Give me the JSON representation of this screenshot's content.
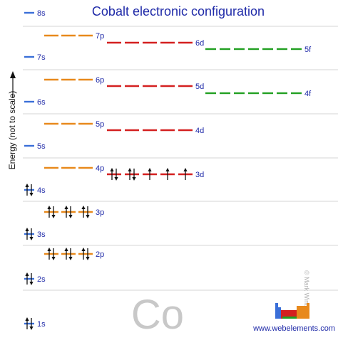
{
  "title": "Cobalt electronic configuration",
  "y_axis_label": "Energy (not to scale)",
  "element_symbol": "Co",
  "credit": "© Mark Winter",
  "website": "www.webelements.com",
  "colors": {
    "s": "#3a6fd8",
    "p": "#e8891c",
    "d": "#d42020",
    "f": "#22a022",
    "label": "#1f2aa8",
    "arrow": "#111111",
    "divider": "#d6d6d6"
  },
  "orbitals": [
    {
      "label": "1s",
      "type": "s",
      "electrons": 2
    },
    {
      "label": "2s",
      "type": "s",
      "electrons": 2
    },
    {
      "label": "2p",
      "type": "p",
      "electrons": 6
    },
    {
      "label": "3s",
      "type": "s",
      "electrons": 2
    },
    {
      "label": "3p",
      "type": "p",
      "electrons": 6
    },
    {
      "label": "4s",
      "type": "s",
      "electrons": 2
    },
    {
      "label": "3d",
      "type": "d",
      "electrons": 7
    },
    {
      "label": "4p",
      "type": "p",
      "electrons": 0
    },
    {
      "label": "5s",
      "type": "s",
      "electrons": 0
    },
    {
      "label": "4d",
      "type": "d",
      "electrons": 0
    },
    {
      "label": "5p",
      "type": "p",
      "electrons": 0
    },
    {
      "label": "6s",
      "type": "s",
      "electrons": 0
    },
    {
      "label": "4f",
      "type": "f",
      "electrons": 0
    },
    {
      "label": "5d",
      "type": "d",
      "electrons": 0
    },
    {
      "label": "6p",
      "type": "p",
      "electrons": 0
    },
    {
      "label": "7s",
      "type": "s",
      "electrons": 0
    },
    {
      "label": "5f",
      "type": "f",
      "electrons": 0
    },
    {
      "label": "6d",
      "type": "d",
      "electrons": 0
    },
    {
      "label": "7p",
      "type": "p",
      "electrons": 0
    },
    {
      "label": "8s",
      "type": "s",
      "electrons": 0
    }
  ]
}
